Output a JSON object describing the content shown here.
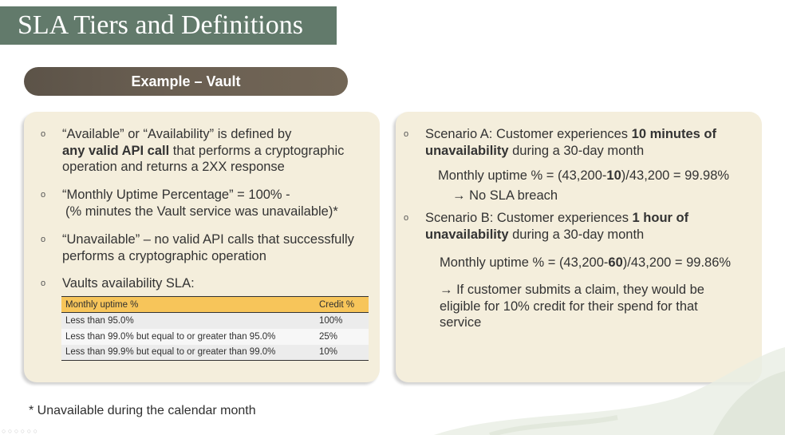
{
  "slide": {
    "title": "SLA Tiers and Definitions",
    "section_label": "Example – Vault",
    "footnote": "* Unavailable during the calendar month"
  },
  "left": {
    "b1": {
      "t1": "“Available” or “Availability” is defined by",
      "t2": "any valid API call",
      "t3": " that performs a cryptographic",
      "t4": "operation and returns a 2XX response"
    },
    "b2": {
      "t1": "“Monthly Uptime Percentage” = 100% -",
      "t2": "(% minutes the Vault service was unavailable)*"
    },
    "b3": {
      "t1": "“Unavailable” – no valid API calls that successfully",
      "t2": "performs a cryptographic operation"
    },
    "b4": {
      "t1": "Vaults availability SLA:"
    },
    "table": {
      "headers": [
        "Monthly uptime %",
        "Credit %"
      ],
      "rows": [
        [
          "Less than 95.0%",
          "100%"
        ],
        [
          "Less than 99.0% but equal to or greater than 95.0%",
          "25%"
        ],
        [
          "Less than 99.9% but equal to or greater than 99.0%",
          "10%"
        ]
      ]
    }
  },
  "right": {
    "a": {
      "t1": "Scenario A: Customer experiences ",
      "t2": "10 minutes of",
      "t3": "unavailability",
      "t4": " during a 30-day month",
      "calc1": "Monthly uptime % = (43,200-",
      "calc2": "10",
      "calc3": ")/43,200 = 99.98%",
      "result": "→ No SLA breach"
    },
    "b": {
      "t1": "Scenario B: Customer experiences ",
      "t2": "1 hour of",
      "t3": "unavailability",
      "t4": " during a 30-day month",
      "calc1": "Monthly uptime % = (43,200-",
      "calc2": "60",
      "calc3": ")/43,200 = 99.86%",
      "result1": "→ If customer submits a claim, they would be",
      "result2": "eligible for 10% credit for their spend for that",
      "result3": "service"
    }
  },
  "bullet_glyph": "o",
  "toolbar_glyphs": "○ ○ ○ ○ ○ ○"
}
